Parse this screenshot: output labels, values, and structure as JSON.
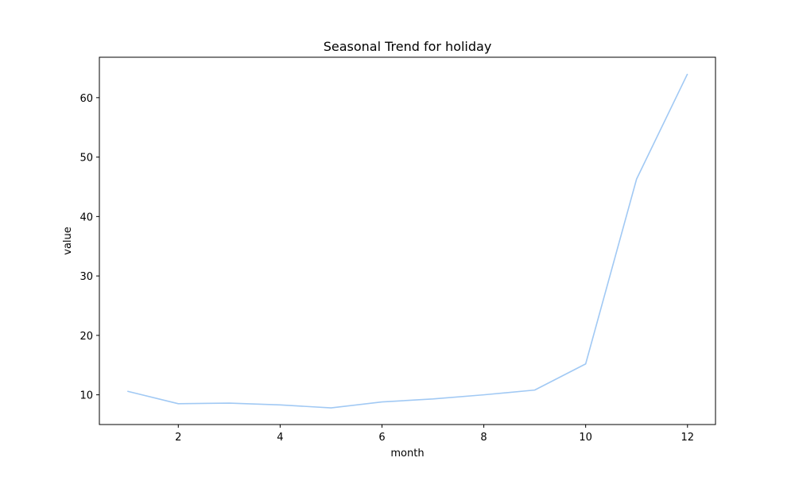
{
  "chart_data": {
    "type": "line",
    "title": "Seasonal Trend for holiday",
    "xlabel": "month",
    "ylabel": "value",
    "x": [
      1,
      2,
      3,
      4,
      5,
      6,
      7,
      8,
      9,
      10,
      11,
      12
    ],
    "series": [
      {
        "values": [
          10.6,
          8.5,
          8.6,
          8.3,
          7.8,
          8.8,
          9.3,
          10.0,
          10.8,
          15.2,
          46.3,
          64.0
        ],
        "color": "#a1c9f4"
      }
    ],
    "xlim": [
      0.45,
      12.55
    ],
    "ylim": [
      5.0,
      66.8
    ],
    "xticks": [
      2,
      4,
      6,
      8,
      10,
      12
    ],
    "yticks": [
      10,
      20,
      30,
      40,
      50,
      60
    ],
    "grid": false,
    "legend": false
  }
}
